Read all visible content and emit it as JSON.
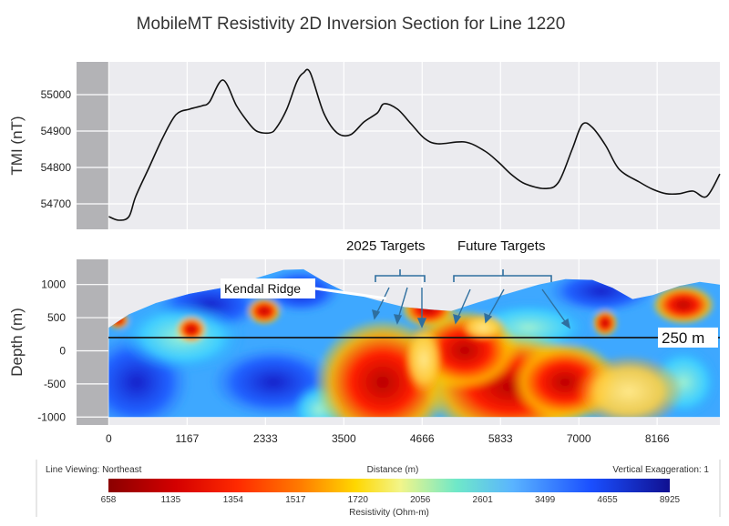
{
  "chart_data": [
    {
      "type": "line",
      "title": "MobileMT Resistivity 2D Inversion Section for Line 1220",
      "ylabel": "TMI (nT)",
      "yticks": [
        "55000",
        "54900",
        "54800",
        "54700"
      ],
      "ytick_values": [
        55000,
        54900,
        54800,
        54700
      ],
      "ylim": [
        54630,
        55090
      ],
      "xlim": [
        -480,
        9100
      ],
      "series": [
        {
          "x": [
            0,
            150,
            300,
            400,
            600,
            800,
            1000,
            1200,
            1300,
            1400,
            1500,
            1700,
            1900,
            2050,
            2200,
            2400,
            2500,
            2650,
            2800,
            2900,
            3000,
            3200,
            3400,
            3600,
            3800,
            4000,
            4100,
            4300,
            4500,
            4700,
            4900,
            5300,
            5600,
            5800,
            6000,
            6200,
            6500,
            6700,
            6900,
            7050,
            7200,
            7400,
            7600,
            7900,
            8100,
            8300,
            8500,
            8700,
            8900,
            9100
          ],
          "values": [
            54665,
            54655,
            54665,
            54720,
            54800,
            54880,
            54945,
            54960,
            54965,
            54970,
            54980,
            55040,
            54970,
            54930,
            54900,
            54895,
            54910,
            54960,
            55035,
            55060,
            55060,
            54950,
            54895,
            54890,
            54925,
            54950,
            54975,
            54960,
            54920,
            54880,
            54865,
            54870,
            54845,
            54815,
            54780,
            54755,
            54742,
            54760,
            54850,
            54918,
            54910,
            54860,
            54795,
            54760,
            54740,
            54728,
            54728,
            54735,
            54720,
            54782
          ]
        }
      ]
    },
    {
      "type": "heatmap",
      "ylabel": "Depth (m)",
      "xlabel": "Distance (m)",
      "yticks": [
        "1000",
        "500",
        "0",
        "-500",
        "-1000"
      ],
      "ytick_values": [
        1000,
        500,
        0,
        -500,
        -1000
      ],
      "xticks": [
        "0",
        "1167",
        "2333",
        "3500",
        "4666",
        "5833",
        "7000",
        "8166"
      ],
      "xtick_values": [
        0,
        1167,
        2333,
        3500,
        4666,
        5833,
        7000,
        8166
      ],
      "xlim": [
        -480,
        9100
      ],
      "ylim": [
        -1120,
        1380
      ],
      "surface": [
        [
          0,
          350
        ],
        [
          300,
          550
        ],
        [
          700,
          720
        ],
        [
          1200,
          860
        ],
        [
          1800,
          970
        ],
        [
          2300,
          1130
        ],
        [
          2600,
          1220
        ],
        [
          2900,
          1230
        ],
        [
          3200,
          1050
        ],
        [
          3500,
          900
        ],
        [
          4000,
          760
        ],
        [
          4400,
          660
        ],
        [
          4800,
          620
        ],
        [
          5100,
          600
        ],
        [
          5500,
          730
        ],
        [
          6000,
          880
        ],
        [
          6400,
          1000
        ],
        [
          6800,
          1080
        ],
        [
          7200,
          1070
        ],
        [
          7500,
          950
        ],
        [
          7800,
          780
        ],
        [
          8100,
          840
        ],
        [
          8500,
          980
        ],
        [
          8800,
          1040
        ],
        [
          9100,
          1000
        ]
      ],
      "reference_line_depth": 200,
      "reference_line_label": "250 m",
      "annotations": {
        "kendal_ridge": "Kendal Ridge",
        "targets_2025": "2025 Targets",
        "future_targets": "Future Targets"
      },
      "footer": {
        "line_viewing": "Line Viewing: Northeast",
        "vertical_exaggeration": "Vertical Exaggeration: 1",
        "distance_label": "Distance (m)"
      },
      "colorbar": {
        "label": "Resistivity (Ohm-m)",
        "ticks": [
          "658",
          "1135",
          "1354",
          "1517",
          "1720",
          "2056",
          "2601",
          "3499",
          "4655",
          "8925"
        ],
        "colors": [
          "#8b0000",
          "#d40000",
          "#ff2a00",
          "#ff7a00",
          "#ffd700",
          "#f2f58a",
          "#6fe8c8",
          "#5ab4ff",
          "#1a4fff",
          "#101090"
        ]
      }
    }
  ]
}
